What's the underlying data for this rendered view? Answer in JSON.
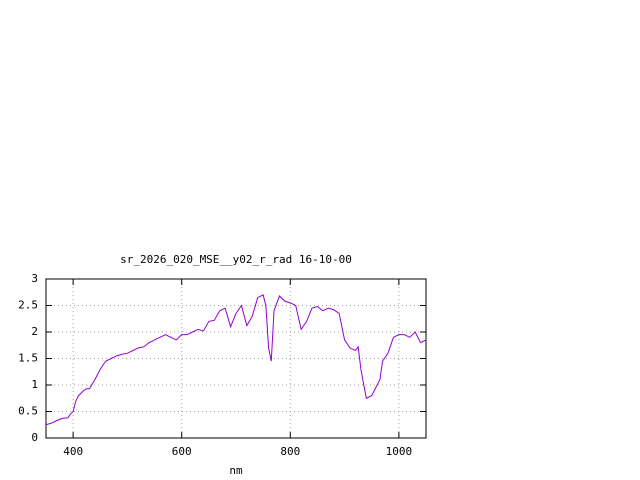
{
  "chart_data": {
    "type": "line",
    "title": "sr_2026_020_MSE__y02_r_rad 16-10-00",
    "x_label": "nm",
    "x": [
      350,
      360,
      370,
      380,
      390,
      395,
      400,
      405,
      410,
      420,
      425,
      430,
      440,
      450,
      460,
      470,
      480,
      490,
      500,
      510,
      520,
      530,
      540,
      550,
      560,
      570,
      580,
      590,
      600,
      610,
      620,
      630,
      640,
      650,
      660,
      670,
      680,
      690,
      700,
      710,
      720,
      730,
      740,
      750,
      755,
      760,
      765,
      770,
      780,
      790,
      800,
      810,
      820,
      830,
      840,
      850,
      860,
      870,
      880,
      890,
      900,
      910,
      920,
      925,
      930,
      940,
      950,
      960,
      965,
      970,
      980,
      990,
      1000,
      1010,
      1020,
      1030,
      1040,
      1050
    ],
    "series": [
      {
        "color": "#9400d3",
        "values": [
          0.25,
          0.28,
          0.33,
          0.37,
          0.38,
          0.45,
          0.5,
          0.7,
          0.8,
          0.9,
          0.93,
          0.93,
          1.1,
          1.3,
          1.45,
          1.5,
          1.55,
          1.58,
          1.6,
          1.65,
          1.7,
          1.72,
          1.8,
          1.85,
          1.9,
          1.95,
          1.9,
          1.85,
          1.95,
          1.95,
          2.0,
          2.05,
          2.02,
          2.2,
          2.22,
          2.4,
          2.45,
          2.1,
          2.35,
          2.5,
          2.12,
          2.3,
          2.65,
          2.7,
          2.5,
          1.7,
          1.45,
          2.4,
          2.68,
          2.58,
          2.55,
          2.5,
          2.05,
          2.2,
          2.45,
          2.48,
          2.4,
          2.45,
          2.42,
          2.35,
          1.85,
          1.7,
          1.65,
          1.72,
          1.3,
          0.75,
          0.8,
          1.0,
          1.1,
          1.45,
          1.6,
          1.9,
          1.95,
          1.95,
          1.9,
          2.0,
          1.8,
          1.85
        ]
      }
    ],
    "xlim": [
      350,
      1050
    ],
    "xticks": [
      400,
      600,
      800,
      1000
    ],
    "ylim": [
      0,
      3
    ],
    "yticks": [
      0,
      0.5,
      1,
      1.5,
      2,
      2.5,
      3
    ],
    "grid": true
  }
}
